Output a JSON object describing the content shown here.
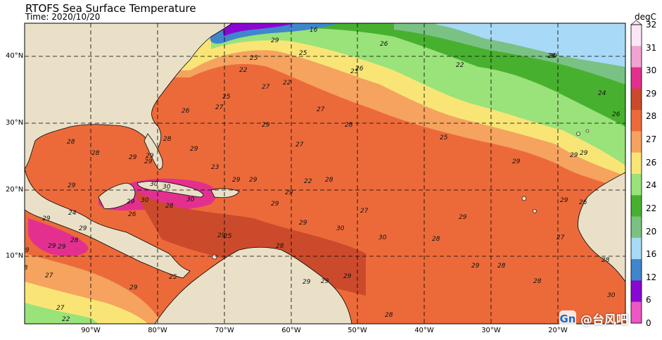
{
  "title": "RTOFS Sea Surface Temperature",
  "subtitle": "Time: 2020/10/20",
  "colorbar": {
    "unit": "degC",
    "labels": [
      "32",
      "31",
      "30",
      "29",
      "28",
      "27",
      "26",
      "24",
      "22",
      "20",
      "16",
      "12",
      "6",
      "0"
    ],
    "colors": [
      "#fbe6f5",
      "#f1a3d2",
      "#e3308f",
      "#cc4a2c",
      "#ed6a38",
      "#f5a35f",
      "#f8e575",
      "#9ae27a",
      "#48b02f",
      "#79c283",
      "#a8d9f7",
      "#3f86cc",
      "#8a07d3",
      "#ed57c4"
    ]
  },
  "map": {
    "lat_labels": [
      "40°N",
      "30°N",
      "20°N",
      "10°N"
    ],
    "lon_labels": [
      "90°W",
      "80°W",
      "70°W",
      "60°W",
      "50°W",
      "40°W",
      "30°W",
      "20°W"
    ],
    "isotherm_labels": [
      "16",
      "25",
      "29",
      "26",
      "22",
      "28",
      "24",
      "26",
      "25",
      "23",
      "26",
      "22",
      "27",
      "25",
      "22",
      "26",
      "28",
      "27",
      "27",
      "28",
      "29",
      "27",
      "29",
      "29",
      "25",
      "29",
      "29",
      "23",
      "29",
      "30",
      "30",
      "30",
      "29",
      "29",
      "28",
      "28",
      "29",
      "29",
      "30",
      "29",
      "28",
      "26",
      "24",
      "29",
      "22",
      "28",
      "27",
      "30",
      "29",
      "29",
      "29",
      "28",
      "29",
      "29",
      "30",
      "28",
      "29",
      "28",
      "28",
      "29",
      "26",
      "27",
      "28",
      "30",
      "29",
      "29",
      "29",
      "29",
      "29",
      "28",
      "29",
      "28",
      "27",
      "29",
      "25",
      "27",
      "28",
      "29",
      "29",
      "20",
      "22",
      "25"
    ]
  },
  "watermark": {
    "logo": "Gn",
    "text": "@台风吧"
  }
}
